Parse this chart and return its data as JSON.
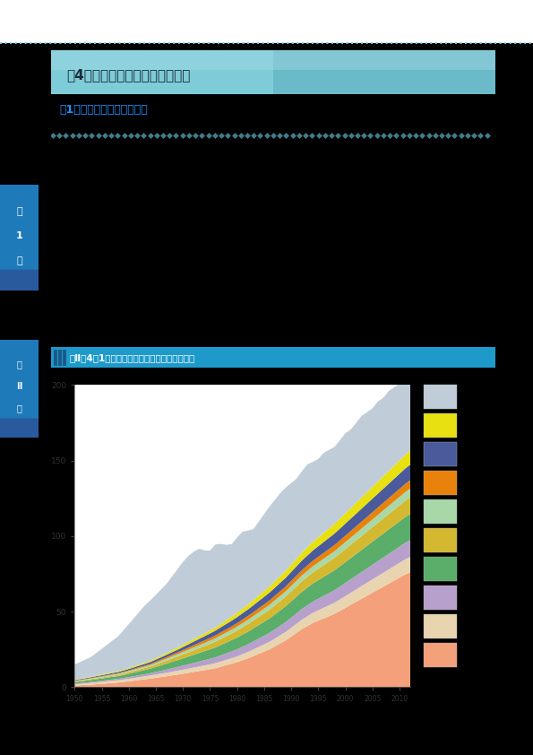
{
  "title": "図Ⅱ－4－1　世界の漁業・養殖業生産鈇の推移",
  "section_title": "第4節　水産業をめぐる国際情勢",
  "subsection": "（1）　世界の漁業・養殖業",
  "fig_label": "図Ⅱ－4－1　世界の漁業・養殖業生産鈇の推移",
  "page_bg": "#FFFFFF",
  "header_bg_left": "#5BA8B8",
  "header_bg_right": "#4A9AAA",
  "side_tab1_bg": "#1E7AB8",
  "side_tab2_bg": "#1E7AB8",
  "fig_bar_bg": "#1E9ACA",
  "fig_bar_stripe": "#1A6A9A",
  "body_bg": "#000000",
  "top_stripe_color": "#7ECDE0",
  "colors_bottom_to_top": [
    "#F4A07A",
    "#E8D5B0",
    "#B8A0CC",
    "#5BAD6A",
    "#D4B830",
    "#A8D8A8",
    "#E8820A",
    "#4A5A9A",
    "#E8E010",
    "#C0CDD8"
  ],
  "legend_colors_top_to_bottom": [
    "#C0CDD8",
    "#E8E010",
    "#4A5A9A",
    "#E8820A",
    "#A8D8A8",
    "#D4B830",
    "#5BAD6A",
    "#B8A0CC",
    "#E8D5B0",
    "#F4A07A"
  ]
}
